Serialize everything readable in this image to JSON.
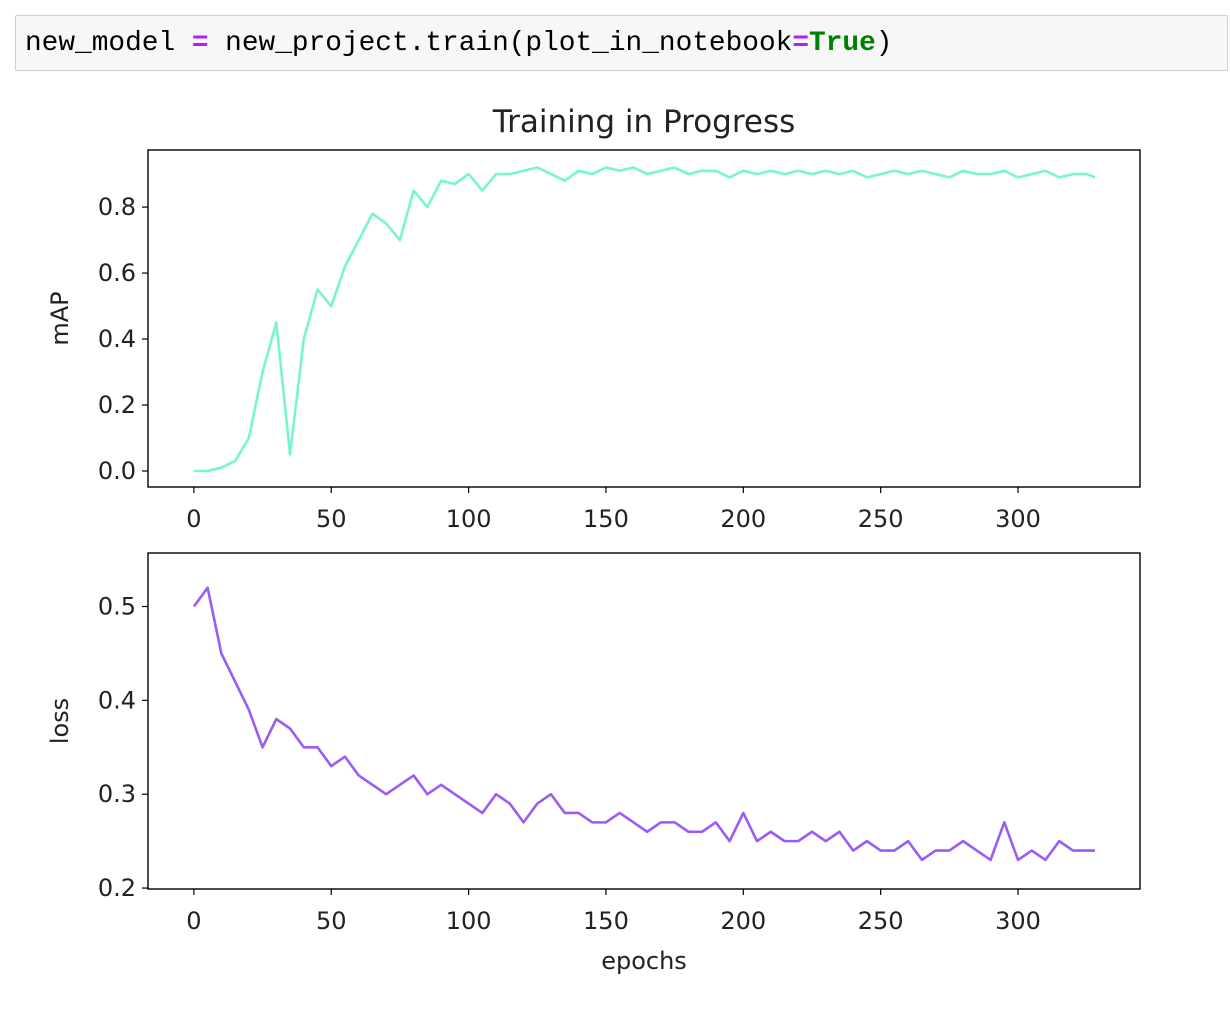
{
  "code": {
    "parts": [
      "new_model ",
      "=",
      " new_project.train(plot_in_notebook",
      "=",
      "True",
      ")"
    ]
  },
  "chart_data": [
    {
      "type": "line",
      "title": "Training in Progress",
      "ylabel": "mAP",
      "color": "#76f5d2",
      "x": [
        0,
        5,
        10,
        15,
        20,
        25,
        30,
        35,
        40,
        45,
        50,
        55,
        60,
        65,
        70,
        75,
        80,
        85,
        90,
        95,
        100,
        105,
        110,
        115,
        120,
        125,
        130,
        135,
        140,
        145,
        150,
        155,
        160,
        165,
        170,
        175,
        180,
        185,
        190,
        195,
        200,
        205,
        210,
        215,
        220,
        225,
        230,
        235,
        240,
        245,
        250,
        255,
        260,
        265,
        270,
        275,
        280,
        285,
        290,
        295,
        300,
        305,
        310,
        315,
        320,
        325,
        328
      ],
      "values": [
        0.0,
        0.0,
        0.01,
        0.03,
        0.1,
        0.3,
        0.45,
        0.05,
        0.4,
        0.55,
        0.5,
        0.62,
        0.7,
        0.78,
        0.75,
        0.7,
        0.85,
        0.8,
        0.88,
        0.87,
        0.9,
        0.85,
        0.9,
        0.9,
        0.91,
        0.92,
        0.9,
        0.88,
        0.91,
        0.9,
        0.92,
        0.91,
        0.92,
        0.9,
        0.91,
        0.92,
        0.9,
        0.91,
        0.91,
        0.89,
        0.91,
        0.9,
        0.91,
        0.9,
        0.91,
        0.9,
        0.91,
        0.9,
        0.91,
        0.89,
        0.9,
        0.91,
        0.9,
        0.91,
        0.9,
        0.89,
        0.91,
        0.9,
        0.9,
        0.91,
        0.89,
        0.9,
        0.91,
        0.89,
        0.9,
        0.9,
        0.89
      ],
      "xlim": [
        -16.7,
        344.4
      ],
      "xticks": [
        0,
        50,
        100,
        150,
        200,
        250,
        300
      ],
      "ylim": [
        -0.0485,
        0.973
      ],
      "yticks": [
        {
          "value": 0,
          "label": "0.0"
        },
        0.2,
        0.4,
        0.6,
        0.8
      ]
    },
    {
      "type": "line",
      "ylabel": "loss",
      "xlabel": "epochs",
      "color": "#9b5cf5",
      "x": [
        0,
        5,
        10,
        15,
        20,
        25,
        30,
        35,
        40,
        45,
        50,
        55,
        60,
        65,
        70,
        75,
        80,
        85,
        90,
        95,
        100,
        105,
        110,
        115,
        120,
        125,
        130,
        135,
        140,
        145,
        150,
        155,
        160,
        165,
        170,
        175,
        180,
        185,
        190,
        195,
        200,
        205,
        210,
        215,
        220,
        225,
        230,
        235,
        240,
        245,
        250,
        255,
        260,
        265,
        270,
        275,
        280,
        285,
        290,
        295,
        300,
        305,
        310,
        315,
        320,
        325,
        328
      ],
      "values": [
        0.5,
        0.52,
        0.45,
        0.42,
        0.39,
        0.35,
        0.38,
        0.37,
        0.35,
        0.35,
        0.33,
        0.34,
        0.32,
        0.31,
        0.3,
        0.31,
        0.32,
        0.3,
        0.31,
        0.3,
        0.29,
        0.28,
        0.3,
        0.29,
        0.27,
        0.29,
        0.3,
        0.28,
        0.28,
        0.27,
        0.27,
        0.28,
        0.27,
        0.26,
        0.27,
        0.27,
        0.26,
        0.26,
        0.27,
        0.25,
        0.28,
        0.25,
        0.26,
        0.25,
        0.25,
        0.26,
        0.25,
        0.26,
        0.24,
        0.25,
        0.24,
        0.24,
        0.25,
        0.23,
        0.24,
        0.24,
        0.25,
        0.24,
        0.23,
        0.27,
        0.23,
        0.24,
        0.23,
        0.25,
        0.24,
        0.24,
        0.24
      ],
      "xlim": [
        -16.7,
        344.4
      ],
      "xticks": [
        0,
        50,
        100,
        150,
        200,
        250,
        300
      ],
      "ylim": [
        0.199,
        0.557
      ],
      "yticks": [
        0.2,
        0.3,
        0.4,
        0.5
      ]
    }
  ]
}
